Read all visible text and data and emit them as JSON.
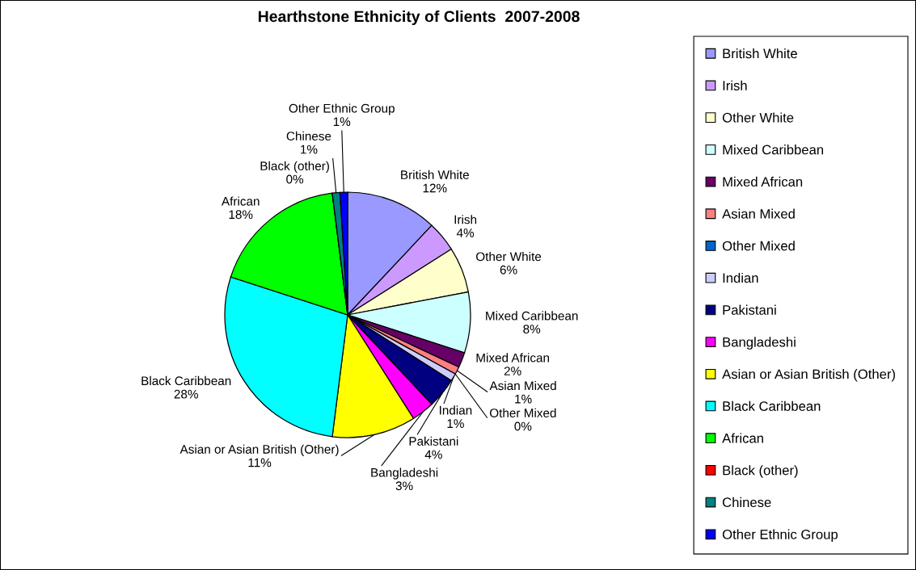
{
  "chart_data": {
    "type": "pie",
    "title": "Hearthstone Ethnicity of Clients  2007-2008",
    "categories": [
      "British White",
      "Irish",
      "Other White",
      "Mixed Caribbean",
      "Mixed African",
      "Asian Mixed",
      "Other Mixed",
      "Indian",
      "Pakistani",
      "Bangladeshi",
      "Asian or Asian British (Other)",
      "Black Caribbean",
      "African",
      "Black (other)",
      "Chinese",
      "Other Ethnic Group"
    ],
    "values": [
      12,
      4,
      6,
      8,
      2,
      1,
      0,
      1,
      4,
      3,
      11,
      28,
      18,
      0,
      1,
      1
    ],
    "value_labels": [
      "12%",
      "4%",
      "6%",
      "8%",
      "2%",
      "1%",
      "0%",
      "1%",
      "4%",
      "3%",
      "11%",
      "28%",
      "18%",
      "0%",
      "1%",
      "1%"
    ],
    "colors": [
      "#9999ff",
      "#cc99ff",
      "#ffffcc",
      "#ccffff",
      "#660066",
      "#ff8080",
      "#0066cc",
      "#ccccff",
      "#000080",
      "#ff00ff",
      "#ffff00",
      "#00ffff",
      "#00ff00",
      "#ff0000",
      "#008080",
      "#0000ff"
    ],
    "legend": "right"
  }
}
